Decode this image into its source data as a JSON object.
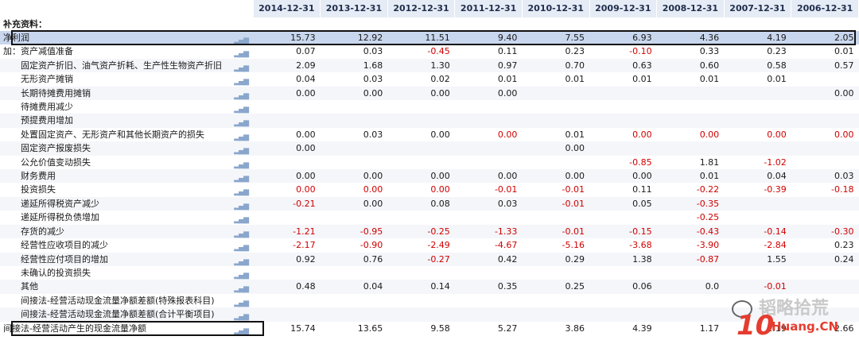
{
  "columns": [
    "2014-12-31",
    "2013-12-31",
    "2012-12-31",
    "2011-12-31",
    "2010-12-31",
    "2009-12-31",
    "2008-12-31",
    "2007-12-31",
    "2006-12-31"
  ],
  "section_title": "补充资料：",
  "rows": [
    {
      "label": "净利润",
      "indent": 0,
      "highlight": true,
      "boxed": true,
      "values": [
        "15.73",
        "12.92",
        "11.51",
        "9.40",
        "7.55",
        "6.93",
        "4.36",
        "4.19",
        "2.05"
      ]
    },
    {
      "label": "加：资产减值准备",
      "indent": 0,
      "values": [
        "0.07",
        "0.03",
        "-0.45",
        "0.11",
        "0.23",
        "-0.10",
        "0.33",
        "0.23",
        "0.01"
      ],
      "neg": [
        false,
        false,
        true,
        false,
        false,
        true,
        false,
        false,
        false
      ]
    },
    {
      "label": "固定资产折旧、油气资产折耗、生产性生物资产折旧",
      "indent": 1,
      "values": [
        "2.09",
        "1.68",
        "1.30",
        "0.97",
        "0.70",
        "0.63",
        "0.60",
        "0.58",
        "0.57"
      ]
    },
    {
      "label": "无形资产摊销",
      "indent": 1,
      "values": [
        "0.04",
        "0.03",
        "0.02",
        "0.01",
        "0.01",
        "0.01",
        "0.01",
        "0.01",
        ""
      ]
    },
    {
      "label": "长期待摊费用摊销",
      "indent": 1,
      "values": [
        "0.00",
        "0.00",
        "0.00",
        "0.00",
        "",
        "",
        "",
        "",
        "0.00"
      ]
    },
    {
      "label": "待摊费用减少",
      "indent": 1,
      "values": [
        "",
        "",
        "",
        "",
        "",
        "",
        "",
        "",
        ""
      ]
    },
    {
      "label": "预提费用增加",
      "indent": 1,
      "values": [
        "",
        "",
        "",
        "",
        "",
        "",
        "",
        "",
        ""
      ]
    },
    {
      "label": "处置固定资产、无形资产和其他长期资产的损失",
      "indent": 1,
      "values": [
        "0.00",
        "0.03",
        "0.00",
        "0.00",
        "0.01",
        "0.00",
        "0.00",
        "0.00",
        "0.00"
      ],
      "neg": [
        false,
        false,
        false,
        true,
        false,
        true,
        true,
        true,
        true
      ]
    },
    {
      "label": "固定资产报废损失",
      "indent": 1,
      "values": [
        "0.00",
        "",
        "",
        "",
        "0.00",
        "",
        "",
        "",
        ""
      ]
    },
    {
      "label": "公允价值变动损失",
      "indent": 1,
      "values": [
        "",
        "",
        "",
        "",
        "",
        "-0.85",
        "1.81",
        "-1.02",
        ""
      ],
      "neg": [
        false,
        false,
        false,
        false,
        false,
        true,
        false,
        true,
        false
      ]
    },
    {
      "label": "财务费用",
      "indent": 1,
      "values": [
        "0.00",
        "0.00",
        "0.00",
        "0.00",
        "0.00",
        "0.00",
        "0.01",
        "0.04",
        "0.03"
      ]
    },
    {
      "label": "投资损失",
      "indent": 1,
      "values": [
        "0.00",
        "0.00",
        "0.00",
        "-0.01",
        "-0.01",
        "0.11",
        "-0.22",
        "-0.39",
        "-0.18"
      ],
      "neg": [
        true,
        true,
        true,
        true,
        true,
        false,
        true,
        true,
        true
      ]
    },
    {
      "label": "递延所得税资产减少",
      "indent": 1,
      "values": [
        "-0.21",
        "0.00",
        "0.08",
        "0.03",
        "-0.01",
        "0.05",
        "-0.35",
        "",
        ""
      ],
      "neg": [
        true,
        false,
        false,
        false,
        true,
        false,
        true,
        false,
        false
      ]
    },
    {
      "label": "递延所得税负债增加",
      "indent": 1,
      "values": [
        "",
        "",
        "",
        "",
        "",
        "",
        "-0.25",
        "",
        ""
      ],
      "neg": [
        false,
        false,
        false,
        false,
        false,
        false,
        true,
        false,
        false
      ]
    },
    {
      "label": "存货的减少",
      "indent": 1,
      "values": [
        "-1.21",
        "-0.95",
        "-0.25",
        "-1.33",
        "-0.01",
        "-0.15",
        "-0.43",
        "-0.14",
        "-0.30"
      ],
      "neg": [
        true,
        true,
        true,
        true,
        true,
        true,
        true,
        true,
        true
      ]
    },
    {
      "label": "经营性应收项目的减少",
      "indent": 1,
      "values": [
        "-2.17",
        "-0.90",
        "-2.49",
        "-4.67",
        "-5.16",
        "-3.68",
        "-3.90",
        "-2.84",
        "0.23"
      ],
      "neg": [
        true,
        true,
        true,
        true,
        true,
        true,
        true,
        true,
        false
      ]
    },
    {
      "label": "经营性应付项目的增加",
      "indent": 1,
      "values": [
        "0.92",
        "0.76",
        "-0.27",
        "0.42",
        "0.29",
        "1.38",
        "-0.87",
        "1.55",
        "0.24"
      ],
      "neg": [
        false,
        false,
        true,
        false,
        false,
        false,
        true,
        false,
        false
      ]
    },
    {
      "label": "未确认的投资损失",
      "indent": 1,
      "values": [
        "",
        "",
        "",
        "",
        "",
        "",
        "",
        "",
        ""
      ]
    },
    {
      "label": "其他",
      "indent": 1,
      "values": [
        "0.48",
        "0.04",
        "0.14",
        "0.35",
        "0.25",
        "0.06",
        "0.0",
        "-0.01",
        ""
      ],
      "neg": [
        false,
        false,
        false,
        false,
        false,
        false,
        false,
        true,
        false
      ]
    },
    {
      "label": "间接法-经营活动现金流量净额差额(特殊报表科目)",
      "indent": 1,
      "values": [
        "",
        "",
        "",
        "",
        "",
        "",
        "",
        "",
        ""
      ]
    },
    {
      "label": "间接法-经营活动现金流量净额差额(合计平衡项目)",
      "indent": 1,
      "values": [
        "",
        "",
        "",
        "",
        "",
        "",
        "",
        "",
        ""
      ]
    },
    {
      "label": "间接法-经营活动产生的现金流量净额",
      "indent": 0,
      "boxed": true,
      "values": [
        "15.74",
        "13.65",
        "9.58",
        "5.27",
        "3.86",
        "4.39",
        "1.17",
        "2.19",
        "2.66"
      ]
    }
  ],
  "watermark": {
    "name": "韬略拾荒",
    "brand": "10",
    "url": "Huang.CN"
  }
}
